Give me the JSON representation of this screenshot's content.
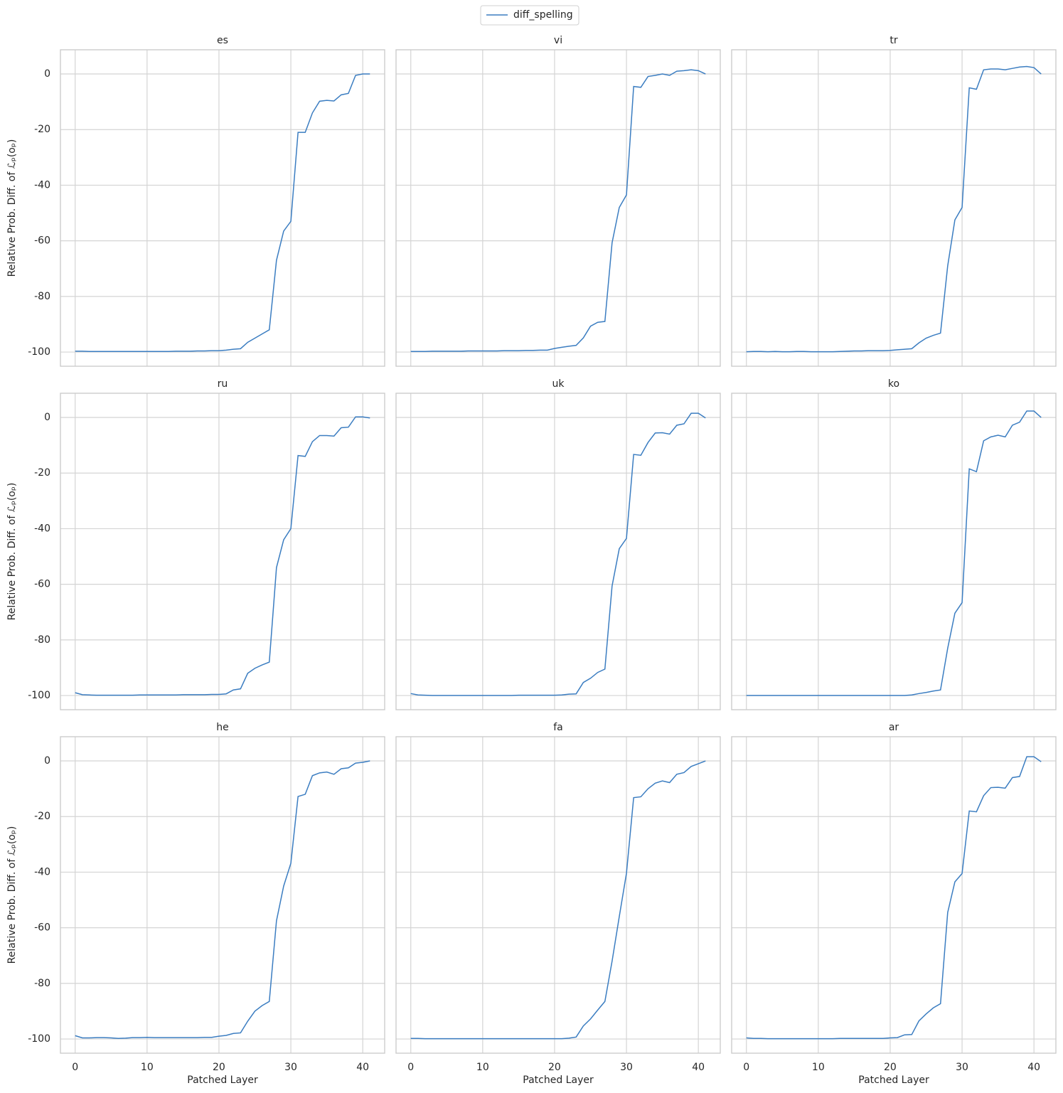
{
  "chart_data": [
    {
      "type": "line",
      "title": "es",
      "ylabel": "Relative Prob. Diff. of ℒₚ(oₚ)",
      "x": [
        0,
        1,
        2,
        3,
        4,
        5,
        6,
        7,
        8,
        9,
        10,
        11,
        12,
        13,
        14,
        15,
        16,
        17,
        18,
        19,
        20,
        21,
        22,
        23,
        24,
        25,
        26,
        27,
        28,
        29,
        30,
        31,
        32,
        33,
        34,
        35,
        36,
        37,
        38,
        39,
        40,
        41
      ],
      "series": [
        {
          "name": "diff_spelling",
          "color": "#3b7dc1",
          "values": [
            -99.7,
            -99.7,
            -99.8,
            -99.8,
            -99.8,
            -99.8,
            -99.8,
            -99.8,
            -99.8,
            -99.8,
            -99.8,
            -99.8,
            -99.8,
            -99.8,
            -99.7,
            -99.7,
            -99.7,
            -99.6,
            -99.6,
            -99.5,
            -99.5,
            -99.3,
            -99,
            -98.8,
            -96.5,
            -95,
            -93.5,
            -92,
            -67,
            -56.5,
            -53,
            -21,
            -21,
            -14,
            -9.8,
            -9.5,
            -9.7,
            -7.5,
            -7,
            -0.5,
            0,
            0
          ]
        }
      ],
      "xlim": [
        -2.05,
        43.05
      ],
      "ylim": [
        -105.1,
        8.7
      ],
      "xticks": [
        0,
        10,
        20,
        30,
        40
      ],
      "yticks": [
        -100,
        -80,
        -60,
        -40,
        -20,
        0
      ],
      "grid": true
    },
    {
      "type": "line",
      "title": "vi",
      "x": [
        0,
        1,
        2,
        3,
        4,
        5,
        6,
        7,
        8,
        9,
        10,
        11,
        12,
        13,
        14,
        15,
        16,
        17,
        18,
        19,
        20,
        21,
        22,
        23,
        24,
        25,
        26,
        27,
        28,
        29,
        30,
        31,
        32,
        33,
        34,
        35,
        36,
        37,
        38,
        39,
        40,
        41
      ],
      "series": [
        {
          "name": "diff_spelling",
          "color": "#3b7dc1",
          "values": [
            -99.8,
            -99.8,
            -99.8,
            -99.7,
            -99.7,
            -99.7,
            -99.7,
            -99.7,
            -99.6,
            -99.6,
            -99.6,
            -99.6,
            -99.6,
            -99.5,
            -99.5,
            -99.5,
            -99.4,
            -99.4,
            -99.3,
            -99.3,
            -98.7,
            -98.3,
            -97.9,
            -97.6,
            -94.9,
            -90.7,
            -89.3,
            -89,
            -60.7,
            -48,
            -43.5,
            -4.5,
            -4.8,
            -0.9,
            -0.5,
            0,
            -0.5,
            1,
            1.2,
            1.5,
            1.2,
            0
          ]
        }
      ],
      "xlim": [
        -2.05,
        43.05
      ],
      "ylim": [
        -105.1,
        8.7
      ],
      "xticks": [
        0,
        10,
        20,
        30,
        40
      ],
      "yticks": [
        -100,
        -80,
        -60,
        -40,
        -20,
        0
      ],
      "grid": true
    },
    {
      "type": "line",
      "title": "tr",
      "x": [
        0,
        1,
        2,
        3,
        4,
        5,
        6,
        7,
        8,
        9,
        10,
        11,
        12,
        13,
        14,
        15,
        16,
        17,
        18,
        19,
        20,
        21,
        22,
        23,
        24,
        25,
        26,
        27,
        28,
        29,
        30,
        31,
        32,
        33,
        34,
        35,
        36,
        37,
        38,
        39,
        40,
        41
      ],
      "series": [
        {
          "name": "diff_spelling",
          "color": "#3b7dc1",
          "values": [
            -99.9,
            -99.8,
            -99.8,
            -99.9,
            -99.8,
            -99.9,
            -99.9,
            -99.8,
            -99.8,
            -99.9,
            -99.9,
            -99.9,
            -99.9,
            -99.8,
            -99.7,
            -99.6,
            -99.6,
            -99.5,
            -99.5,
            -99.5,
            -99.4,
            -99.2,
            -99,
            -98.8,
            -96.7,
            -95,
            -94,
            -93.2,
            -69,
            -52.5,
            -48,
            -5,
            -5.5,
            1.5,
            1.8,
            1.8,
            1.5,
            2,
            2.5,
            2.7,
            2.3,
            0
          ]
        }
      ],
      "xlim": [
        -2.05,
        43.05
      ],
      "ylim": [
        -105.1,
        8.7
      ],
      "xticks": [
        0,
        10,
        20,
        30,
        40
      ],
      "yticks": [
        -100,
        -80,
        -60,
        -40,
        -20,
        0
      ],
      "grid": true
    },
    {
      "type": "line",
      "title": "ru",
      "ylabel": "Relative Prob. Diff. of ℒₚ(oₚ)",
      "x": [
        0,
        1,
        2,
        3,
        4,
        5,
        6,
        7,
        8,
        9,
        10,
        11,
        12,
        13,
        14,
        15,
        16,
        17,
        18,
        19,
        20,
        21,
        22,
        23,
        24,
        25,
        26,
        27,
        28,
        29,
        30,
        31,
        32,
        33,
        34,
        35,
        36,
        37,
        38,
        39,
        40,
        41
      ],
      "series": [
        {
          "name": "diff_spelling",
          "color": "#3b7dc1",
          "values": [
            -99,
            -99.7,
            -99.8,
            -99.9,
            -99.9,
            -99.9,
            -99.9,
            -99.9,
            -99.9,
            -99.8,
            -99.8,
            -99.8,
            -99.8,
            -99.8,
            -99.8,
            -99.7,
            -99.7,
            -99.7,
            -99.7,
            -99.6,
            -99.6,
            -99.4,
            -98,
            -97.6,
            -92,
            -90.2,
            -89,
            -88,
            -54,
            -44,
            -40,
            -13.7,
            -14,
            -8.7,
            -6.5,
            -6.5,
            -6.7,
            -3.7,
            -3.5,
            0.2,
            0.2,
            -0.2
          ]
        }
      ],
      "xlim": [
        -2.05,
        43.05
      ],
      "ylim": [
        -105.1,
        8.7
      ],
      "xticks": [
        0,
        10,
        20,
        30,
        40
      ],
      "yticks": [
        -100,
        -80,
        -60,
        -40,
        -20,
        0
      ],
      "grid": true
    },
    {
      "type": "line",
      "title": "uk",
      "x": [
        0,
        1,
        2,
        3,
        4,
        5,
        6,
        7,
        8,
        9,
        10,
        11,
        12,
        13,
        14,
        15,
        16,
        17,
        18,
        19,
        20,
        21,
        22,
        23,
        24,
        25,
        26,
        27,
        28,
        29,
        30,
        31,
        32,
        33,
        34,
        35,
        36,
        37,
        38,
        39,
        40,
        41
      ],
      "series": [
        {
          "name": "diff_spelling",
          "color": "#3b7dc1",
          "values": [
            -99.3,
            -99.8,
            -99.9,
            -100,
            -100,
            -100,
            -100,
            -100,
            -100,
            -100,
            -100,
            -100,
            -100,
            -100,
            -100,
            -99.9,
            -99.9,
            -99.9,
            -99.9,
            -99.9,
            -99.9,
            -99.8,
            -99.5,
            -99.4,
            -95.3,
            -93.8,
            -91.7,
            -90.5,
            -60.6,
            -47.2,
            -43.5,
            -13.3,
            -13.6,
            -9,
            -5.6,
            -5.5,
            -6,
            -2.8,
            -2.3,
            1.5,
            1.5,
            -0.2
          ]
        }
      ],
      "xlim": [
        -2.05,
        43.05
      ],
      "ylim": [
        -105.1,
        8.7
      ],
      "xticks": [
        0,
        10,
        20,
        30,
        40
      ],
      "yticks": [
        -100,
        -80,
        -60,
        -40,
        -20,
        0
      ],
      "grid": true
    },
    {
      "type": "line",
      "title": "ko",
      "x": [
        0,
        1,
        2,
        3,
        4,
        5,
        6,
        7,
        8,
        9,
        10,
        11,
        12,
        13,
        14,
        15,
        16,
        17,
        18,
        19,
        20,
        21,
        22,
        23,
        24,
        25,
        26,
        27,
        28,
        29,
        30,
        31,
        32,
        33,
        34,
        35,
        36,
        37,
        38,
        39,
        40,
        41
      ],
      "series": [
        {
          "name": "diff_spelling",
          "color": "#3b7dc1",
          "values": [
            -100,
            -100,
            -100,
            -100,
            -100,
            -100,
            -100,
            -100,
            -100,
            -100,
            -100,
            -100,
            -100,
            -100,
            -100,
            -100,
            -100,
            -100,
            -100,
            -100,
            -100,
            -100,
            -100,
            -99.8,
            -99.3,
            -98.9,
            -98.4,
            -98,
            -83,
            -70.4,
            -66.6,
            -18.5,
            -19.5,
            -8.4,
            -7,
            -6.4,
            -7,
            -2.8,
            -1.7,
            2.3,
            2.3,
            0
          ]
        }
      ],
      "xlim": [
        -2.05,
        43.05
      ],
      "ylim": [
        -105.1,
        8.7
      ],
      "xticks": [
        0,
        10,
        20,
        30,
        40
      ],
      "yticks": [
        -100,
        -80,
        -60,
        -40,
        -20,
        0
      ],
      "grid": true
    },
    {
      "type": "line",
      "title": "he",
      "ylabel": "Relative Prob. Diff. of ℒₚ(oₚ)",
      "xlabel": "Patched Layer",
      "x": [
        0,
        1,
        2,
        3,
        4,
        5,
        6,
        7,
        8,
        9,
        10,
        11,
        12,
        13,
        14,
        15,
        16,
        17,
        18,
        19,
        20,
        21,
        22,
        23,
        24,
        25,
        26,
        27,
        28,
        29,
        30,
        31,
        32,
        33,
        34,
        35,
        36,
        37,
        38,
        39,
        40,
        41
      ],
      "series": [
        {
          "name": "diff_spelling",
          "color": "#3b7dc1",
          "values": [
            -98.8,
            -99.6,
            -99.6,
            -99.5,
            -99.5,
            -99.6,
            -99.8,
            -99.7,
            -99.5,
            -99.5,
            -99.4,
            -99.5,
            -99.5,
            -99.5,
            -99.5,
            -99.5,
            -99.5,
            -99.5,
            -99.4,
            -99.4,
            -99,
            -98.7,
            -98,
            -97.8,
            -93.6,
            -90,
            -88,
            -86.5,
            -57.5,
            -45,
            -36.8,
            -12.8,
            -12,
            -5.3,
            -4.3,
            -4,
            -4.8,
            -2.8,
            -2.5,
            -0.8,
            -0.5,
            0
          ]
        }
      ],
      "xlim": [
        -2.05,
        43.05
      ],
      "ylim": [
        -105.1,
        8.7
      ],
      "xticks": [
        0,
        10,
        20,
        30,
        40
      ],
      "yticks": [
        -100,
        -80,
        -60,
        -40,
        -20,
        0
      ],
      "grid": true
    },
    {
      "type": "line",
      "title": "fa",
      "xlabel": "Patched Layer",
      "x": [
        0,
        1,
        2,
        3,
        4,
        5,
        6,
        7,
        8,
        9,
        10,
        11,
        12,
        13,
        14,
        15,
        16,
        17,
        18,
        19,
        20,
        21,
        22,
        23,
        24,
        25,
        26,
        27,
        28,
        29,
        30,
        31,
        32,
        33,
        34,
        35,
        36,
        37,
        38,
        39,
        40,
        41
      ],
      "series": [
        {
          "name": "diff_spelling",
          "color": "#3b7dc1",
          "values": [
            -99.8,
            -99.8,
            -99.9,
            -99.9,
            -99.9,
            -99.9,
            -99.9,
            -99.9,
            -99.9,
            -99.9,
            -99.9,
            -99.9,
            -99.9,
            -99.9,
            -99.9,
            -99.9,
            -99.9,
            -99.9,
            -99.9,
            -99.9,
            -99.9,
            -99.9,
            -99.7,
            -99.3,
            -95.3,
            -92.8,
            -89.6,
            -86.5,
            -72,
            -56,
            -40.4,
            -13.2,
            -12.9,
            -10,
            -8,
            -7.2,
            -7.8,
            -4.8,
            -4.2,
            -2,
            -1,
            0
          ]
        }
      ],
      "xlim": [
        -2.05,
        43.05
      ],
      "ylim": [
        -105.1,
        8.7
      ],
      "xticks": [
        0,
        10,
        20,
        30,
        40
      ],
      "yticks": [
        -100,
        -80,
        -60,
        -40,
        -20,
        0
      ],
      "grid": true
    },
    {
      "type": "line",
      "title": "ar",
      "xlabel": "Patched Layer",
      "x": [
        0,
        1,
        2,
        3,
        4,
        5,
        6,
        7,
        8,
        9,
        10,
        11,
        12,
        13,
        14,
        15,
        16,
        17,
        18,
        19,
        20,
        21,
        22,
        23,
        24,
        25,
        26,
        27,
        28,
        29,
        30,
        31,
        32,
        33,
        34,
        35,
        36,
        37,
        38,
        39,
        40,
        41
      ],
      "series": [
        {
          "name": "diff_spelling",
          "color": "#3b7dc1",
          "values": [
            -99.6,
            -99.8,
            -99.8,
            -99.9,
            -99.9,
            -99.9,
            -99.9,
            -99.9,
            -99.9,
            -99.9,
            -99.9,
            -99.9,
            -99.9,
            -99.8,
            -99.8,
            -99.8,
            -99.8,
            -99.8,
            -99.8,
            -99.8,
            -99.6,
            -99.5,
            -98.5,
            -98.4,
            -93.5,
            -91,
            -88.8,
            -87.3,
            -54.5,
            -43.5,
            -40.5,
            -18,
            -18.3,
            -12.5,
            -9.6,
            -9.5,
            -9.8,
            -6,
            -5.6,
            1.5,
            1.5,
            -0.3
          ]
        }
      ],
      "xlim": [
        -2.05,
        43.05
      ],
      "ylim": [
        -105.1,
        8.7
      ],
      "xticks": [
        0,
        10,
        20,
        30,
        40
      ],
      "yticks": [
        -100,
        -80,
        -60,
        -40,
        -20,
        0
      ],
      "grid": true
    }
  ]
}
